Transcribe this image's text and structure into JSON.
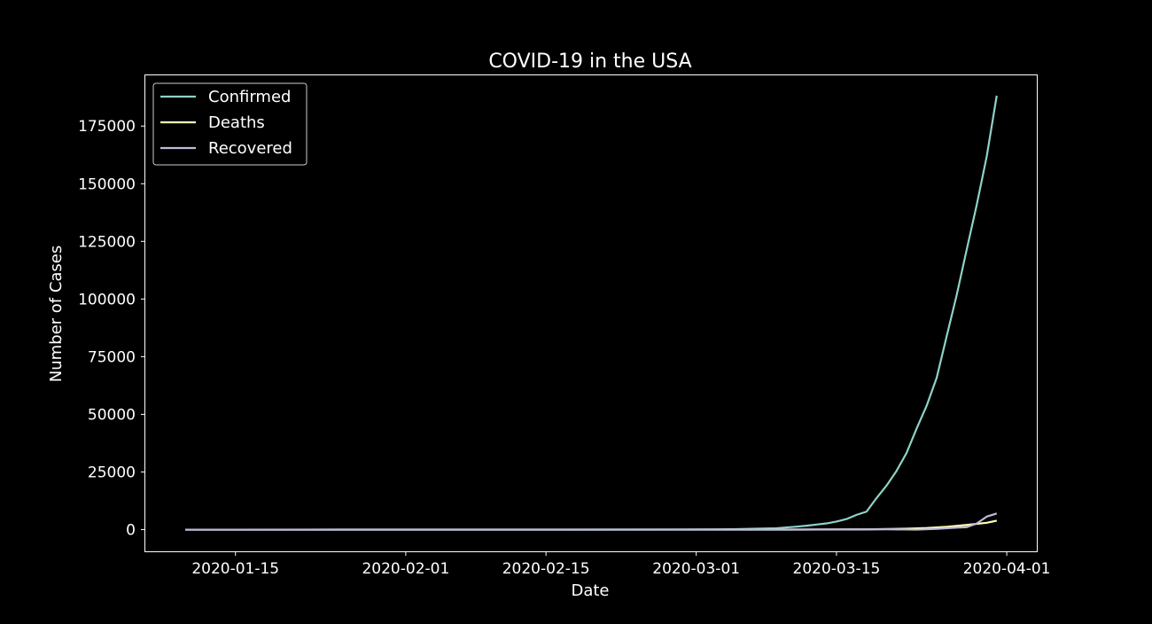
{
  "chart_data": {
    "type": "line",
    "title": "COVID-19 in the USA",
    "xlabel": "Date",
    "ylabel": "Number of Cases",
    "x_start": "2020-01-10",
    "x_end": "2020-03-31",
    "xlim": [
      "2020-01-06",
      "2020-04-04"
    ],
    "ylim": [
      -9400,
      197000
    ],
    "x_ticks": [
      {
        "date": "2020-01-15",
        "label": "2020-01-15"
      },
      {
        "date": "2020-02-01",
        "label": "2020-02-01"
      },
      {
        "date": "2020-02-15",
        "label": "2020-02-15"
      },
      {
        "date": "2020-03-01",
        "label": "2020-03-01"
      },
      {
        "date": "2020-03-15",
        "label": "2020-03-15"
      },
      {
        "date": "2020-04-01",
        "label": "2020-04-01"
      }
    ],
    "y_ticks": [
      0,
      25000,
      50000,
      75000,
      100000,
      125000,
      150000,
      175000
    ],
    "grid": false,
    "legend_position": "top-left",
    "colors": {
      "background": "#000000",
      "text": "#ffffff"
    },
    "series": [
      {
        "name": "Confirmed",
        "color": "#8dd3c7",
        "points": [
          [
            "2020-01-10",
            0
          ],
          [
            "2020-01-22",
            1
          ],
          [
            "2020-02-01",
            8
          ],
          [
            "2020-02-15",
            13
          ],
          [
            "2020-02-28",
            62
          ],
          [
            "2020-03-03",
            118
          ],
          [
            "2020-03-05",
            221
          ],
          [
            "2020-03-07",
            427
          ],
          [
            "2020-03-09",
            600
          ],
          [
            "2020-03-10",
            959
          ],
          [
            "2020-03-11",
            1300
          ],
          [
            "2020-03-12",
            1700
          ],
          [
            "2020-03-13",
            2200
          ],
          [
            "2020-03-14",
            2700
          ],
          [
            "2020-03-15",
            3500
          ],
          [
            "2020-03-16",
            4600
          ],
          [
            "2020-03-17",
            6400
          ],
          [
            "2020-03-18",
            7800
          ],
          [
            "2020-03-19",
            13700
          ],
          [
            "2020-03-20",
            19100
          ],
          [
            "2020-03-21",
            25500
          ],
          [
            "2020-03-22",
            33300
          ],
          [
            "2020-03-23",
            43800
          ],
          [
            "2020-03-24",
            53700
          ],
          [
            "2020-03-25",
            65800
          ],
          [
            "2020-03-26",
            83800
          ],
          [
            "2020-03-27",
            101700
          ],
          [
            "2020-03-28",
            121400
          ],
          [
            "2020-03-29",
            140800
          ],
          [
            "2020-03-30",
            161800
          ],
          [
            "2020-03-31",
            188200
          ]
        ]
      },
      {
        "name": "Deaths",
        "color": "#ffffb3",
        "points": [
          [
            "2020-01-10",
            0
          ],
          [
            "2020-02-28",
            0
          ],
          [
            "2020-03-05",
            12
          ],
          [
            "2020-03-10",
            28
          ],
          [
            "2020-03-15",
            62
          ],
          [
            "2020-03-18",
            120
          ],
          [
            "2020-03-20",
            244
          ],
          [
            "2020-03-22",
            417
          ],
          [
            "2020-03-24",
            706
          ],
          [
            "2020-03-26",
            1209
          ],
          [
            "2020-03-28",
            2026
          ],
          [
            "2020-03-30",
            2978
          ],
          [
            "2020-03-31",
            3873
          ]
        ]
      },
      {
        "name": "Recovered",
        "color": "#bebada",
        "points": [
          [
            "2020-01-10",
            0
          ],
          [
            "2020-03-10",
            8
          ],
          [
            "2020-03-20",
            147
          ],
          [
            "2020-03-23",
            0
          ],
          [
            "2020-03-25",
            361
          ],
          [
            "2020-03-27",
            869
          ],
          [
            "2020-03-28",
            1072
          ],
          [
            "2020-03-29",
            2665
          ],
          [
            "2020-03-30",
            5644
          ],
          [
            "2020-03-31",
            7024
          ]
        ]
      }
    ]
  }
}
